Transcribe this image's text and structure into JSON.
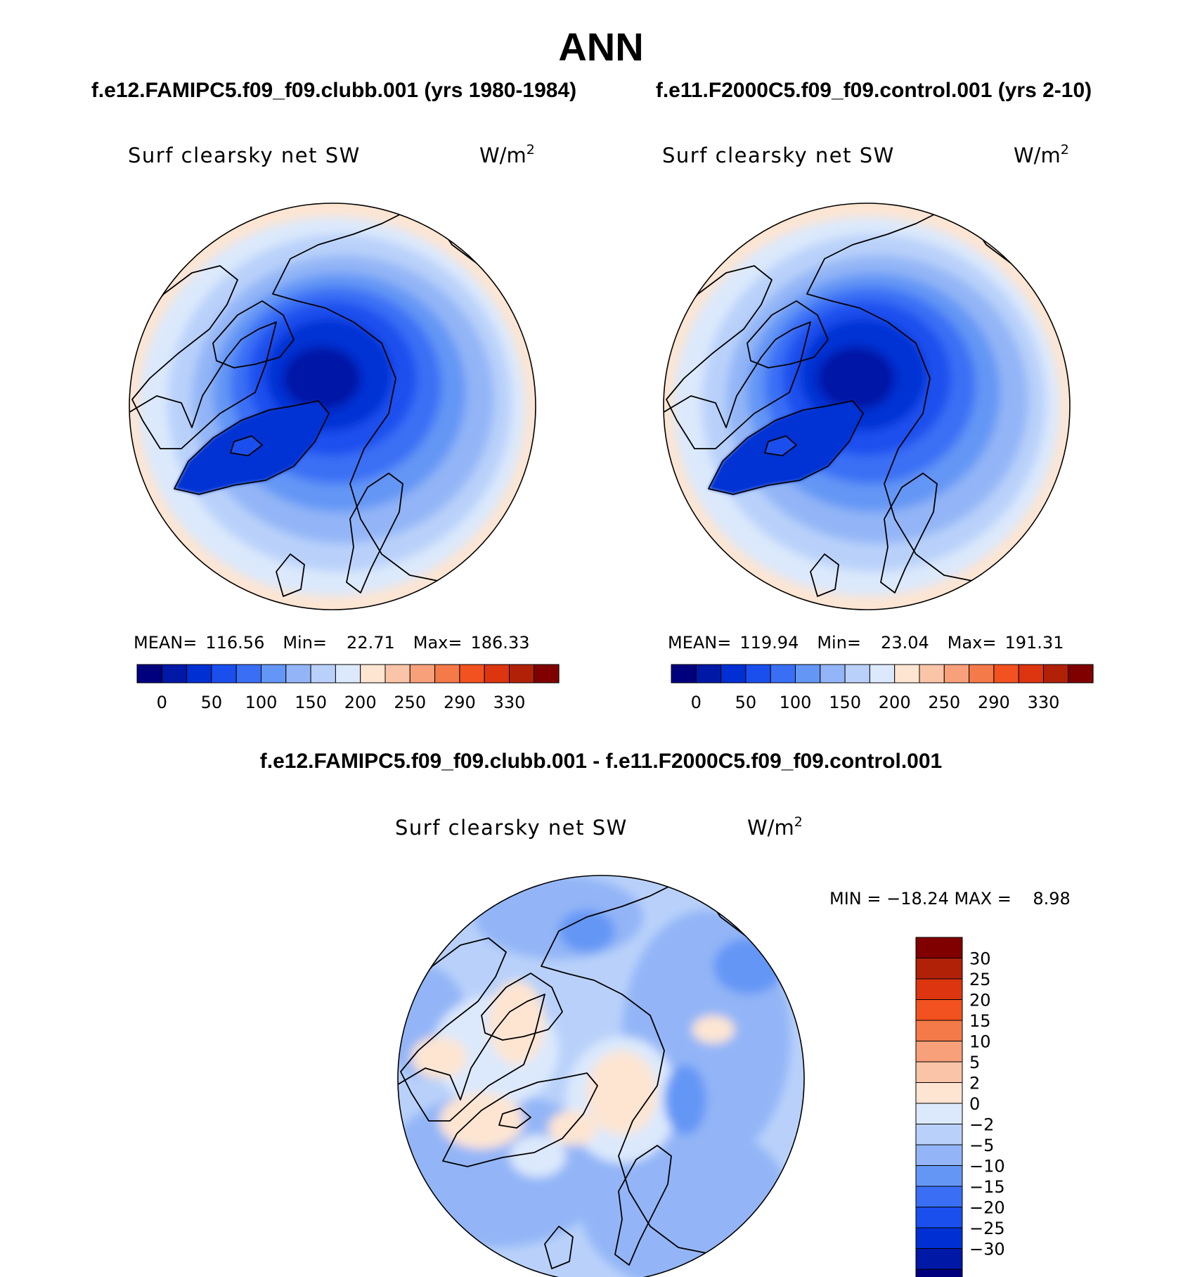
{
  "page_title": "ANN",
  "colors": {
    "scale_abs": [
      "#00007f",
      "#0018a6",
      "#0030d4",
      "#1a4fee",
      "#3a6ff5",
      "#6496f5",
      "#93b5f7",
      "#b9d1fa",
      "#dce9fc",
      "#fde5d2",
      "#fac4a8",
      "#f8a07a",
      "#f47a4a",
      "#f2521f",
      "#dc3510",
      "#b02108",
      "#800000"
    ],
    "scale_diff": [
      "#00007f",
      "#0018a6",
      "#0030d4",
      "#1a4fee",
      "#3a6ff5",
      "#6496f5",
      "#93b5f7",
      "#b9d1fa",
      "#dce9fc",
      "#fde5d2",
      "#fac4a8",
      "#f8a07a",
      "#f47a4a",
      "#f2521f",
      "#dc3510",
      "#b02108",
      "#800000"
    ],
    "coastline": "#000000"
  },
  "chart_data": [
    {
      "type": "heatmap",
      "projection": "north polar stereographic",
      "case_title": "f.e12.FAMIPC5.f09_f09.clubb.001 (yrs 1980-1984)",
      "variable": "Surf clearsky net SW",
      "units": "W/m",
      "units_exp": "2",
      "stats": [
        {
          "label": "MEAN=",
          "value": "116.56"
        },
        {
          "label": "Min=",
          "value": "22.71"
        },
        {
          "label": "Max=",
          "value": "186.33"
        }
      ],
      "mean": 116.56,
      "min": 22.71,
      "max": 186.33,
      "contour_levels": [
        0,
        25,
        50,
        75,
        100,
        125,
        150,
        175,
        200,
        225,
        250,
        270,
        290,
        310,
        330,
        350
      ],
      "colorbar_ticks": [
        "0",
        "50",
        "100",
        "150",
        "200",
        "250",
        "290",
        "330"
      ]
    },
    {
      "type": "heatmap",
      "projection": "north polar stereographic",
      "case_title": "f.e11.F2000C5.f09_f09.control.001 (yrs 2-10)",
      "variable": "Surf clearsky net SW",
      "units": "W/m",
      "units_exp": "2",
      "stats": [
        {
          "label": "MEAN=",
          "value": "119.94"
        },
        {
          "label": "Min=",
          "value": "23.04"
        },
        {
          "label": "Max=",
          "value": "191.31"
        }
      ],
      "mean": 119.94,
      "min": 23.04,
      "max": 191.31,
      "contour_levels": [
        0,
        25,
        50,
        75,
        100,
        125,
        150,
        175,
        200,
        225,
        250,
        270,
        290,
        310,
        330,
        350
      ],
      "colorbar_ticks": [
        "0",
        "50",
        "100",
        "150",
        "200",
        "250",
        "290",
        "330"
      ]
    },
    {
      "type": "heatmap",
      "projection": "north polar stereographic",
      "case_title": "f.e12.FAMIPC5.f09_f09.clubb.001 - f.e11.F2000C5.f09_f09.control.001",
      "variable": "Surf clearsky net SW",
      "units": "W/m",
      "units_exp": "2",
      "minmax_text": "MIN = −18.24 MAX =    8.98",
      "min": -18.24,
      "max": 8.98,
      "contour_levels": [
        -30,
        -25,
        -20,
        -15,
        -10,
        -5,
        -2,
        0,
        2,
        5,
        10,
        15,
        20,
        25,
        30
      ],
      "colorbar_ticks": [
        "30",
        "25",
        "20",
        "15",
        "10",
        "5",
        "2",
        "0",
        "−2",
        "−5",
        "−10",
        "−15",
        "−20",
        "−25",
        "−30"
      ]
    }
  ]
}
